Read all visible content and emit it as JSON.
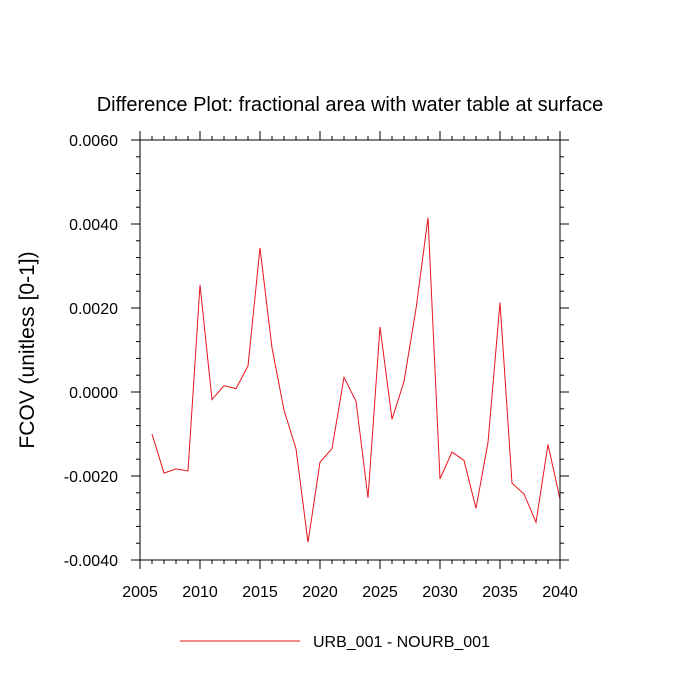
{
  "chart_data": {
    "type": "line",
    "title": "Difference Plot: fractional area with water table at surface",
    "xlabel": "",
    "ylabel": "FCOV  (unitless [0-1])",
    "xlim": [
      2005,
      2040
    ],
    "ylim": [
      -0.004,
      0.006
    ],
    "x_ticks": [
      2005,
      2010,
      2015,
      2020,
      2025,
      2030,
      2035,
      2040
    ],
    "x_tick_labels": [
      "2005",
      "2010",
      "2015",
      "2020",
      "2025",
      "2030",
      "2035",
      "2040"
    ],
    "y_ticks": [
      -0.004,
      -0.002,
      0.0,
      0.002,
      0.004,
      0.006
    ],
    "y_tick_labels": [
      "-0.0040",
      "-0.0020",
      "0.0000",
      "0.0020",
      "0.0040",
      "0.0060"
    ],
    "series_color": "#e8141e",
    "series": [
      {
        "name": "URB_001 - NOURB_001",
        "x": [
          2006,
          2007,
          2008,
          2009,
          2010,
          2011,
          2012,
          2013,
          2014,
          2015,
          2016,
          2017,
          2018,
          2019,
          2020,
          2021,
          2022,
          2023,
          2024,
          2025,
          2026,
          2027,
          2028,
          2029,
          2030,
          2031,
          2032,
          2033,
          2034,
          2035,
          2036,
          2037,
          2038,
          2039,
          2040
        ],
        "values": [
          -0.001,
          -0.00193,
          -0.00183,
          -0.00188,
          0.00255,
          -0.00018,
          0.00015,
          8e-05,
          0.00062,
          0.00343,
          0.00105,
          -0.00043,
          -0.00135,
          -0.00358,
          -0.00167,
          -0.00135,
          0.00035,
          -0.00022,
          -0.00252,
          0.00155,
          -0.00065,
          0.00025,
          0.00198,
          0.00415,
          -0.00207,
          -0.00143,
          -0.00163,
          -0.00277,
          -0.0012,
          0.00213,
          -0.00217,
          -0.00243,
          -0.0031,
          -0.00125,
          -0.00255
        ]
      }
    ],
    "legend_position": "bottom-center"
  }
}
